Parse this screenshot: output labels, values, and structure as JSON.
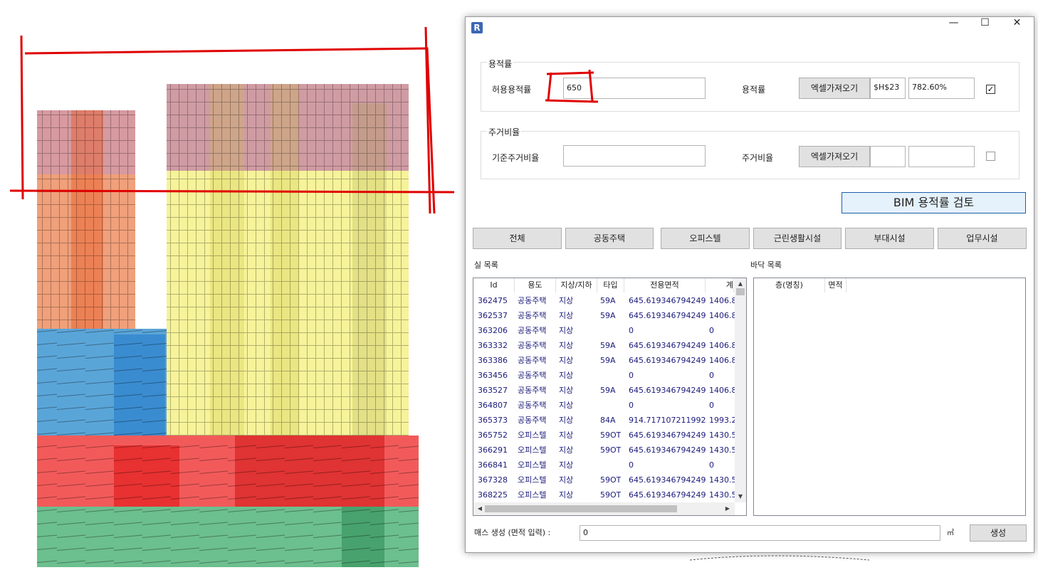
{
  "colors": {
    "window_bg": "#ffffff",
    "accent": "#1e5fa8",
    "button_bg": "#e1e1e1",
    "red_annotation": "#e00000"
  },
  "window": {
    "app_icon": "R",
    "controls": [
      "—",
      "☐",
      "✕"
    ]
  },
  "far_section": {
    "group_title": "용적률",
    "allowed_label": "허용용적률",
    "allowed_value": "650",
    "ratio_label": "용적률",
    "excel_button": "엑셀가져오기",
    "cell_ref": "$H$23",
    "ratio_value": "782.60%",
    "checked": true
  },
  "residential_section": {
    "group_title": "주거비율",
    "base_label": "기준주거비율",
    "base_value": "",
    "ratio_label": "주거비율",
    "excel_button": "엑셀가져오기",
    "cell_ref": "",
    "ratio_value": "",
    "checked": false
  },
  "review_button": "BIM 용적률 검토",
  "filters": [
    "전체",
    "공동주택",
    "오피스텔",
    "근린생활시설",
    "부대시설",
    "업무시설"
  ],
  "room_list": {
    "title": "실 목록",
    "columns": [
      "Id",
      "용도",
      "지상/지하",
      "타입",
      "전용면적",
      "계"
    ],
    "rows": [
      [
        "362475",
        "공동주택",
        "지상",
        "59A",
        "645.619346794249",
        "1406.8"
      ],
      [
        "362537",
        "공동주택",
        "지상",
        "59A",
        "645.619346794249",
        "1406.8"
      ],
      [
        "363206",
        "공동주택",
        "지상",
        "",
        "0",
        "0"
      ],
      [
        "363332",
        "공동주택",
        "지상",
        "59A",
        "645.619346794249",
        "1406.8"
      ],
      [
        "363386",
        "공동주택",
        "지상",
        "59A",
        "645.619346794249",
        "1406.8"
      ],
      [
        "363456",
        "공동주택",
        "지상",
        "",
        "0",
        "0"
      ],
      [
        "363527",
        "공동주택",
        "지상",
        "59A",
        "645.619346794249",
        "1406.8"
      ],
      [
        "364807",
        "공동주택",
        "지상",
        "",
        "0",
        "0"
      ],
      [
        "365373",
        "공동주택",
        "지상",
        "84A",
        "914.717107211992",
        "1993.2"
      ],
      [
        "365752",
        "오피스텔",
        "지상",
        "59OT",
        "645.619346794249",
        "1430.5"
      ],
      [
        "366291",
        "오피스텔",
        "지상",
        "59OT",
        "645.619346794249",
        "1430.5"
      ],
      [
        "366841",
        "오피스텔",
        "지상",
        "",
        "0",
        "0"
      ],
      [
        "367328",
        "오피스텔",
        "지상",
        "59OT",
        "645.619346794249",
        "1430.5"
      ],
      [
        "368225",
        "오피스텔",
        "지상",
        "59OT",
        "645.619346794249",
        "1430.5"
      ]
    ]
  },
  "floor_list": {
    "title": "바닥 목록",
    "columns": [
      "층(명칭)",
      "면적"
    ]
  },
  "mass_gen": {
    "label": "매스 생성 (면적 입력) :",
    "value": "0",
    "unit": "㎡",
    "button": "생성"
  }
}
